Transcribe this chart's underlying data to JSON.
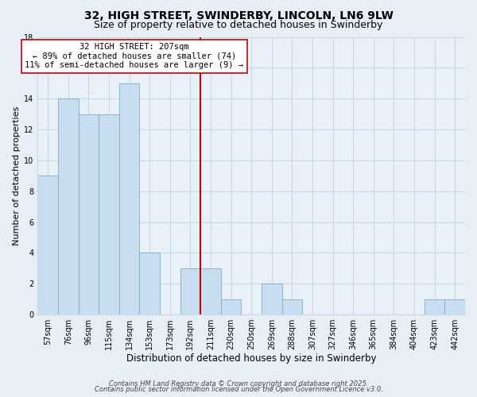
{
  "title": "32, HIGH STREET, SWINDERBY, LINCOLN, LN6 9LW",
  "subtitle": "Size of property relative to detached houses in Swinderby",
  "xlabel": "Distribution of detached houses by size in Swinderby",
  "ylabel": "Number of detached properties",
  "bar_labels": [
    "57sqm",
    "76sqm",
    "96sqm",
    "115sqm",
    "134sqm",
    "153sqm",
    "173sqm",
    "192sqm",
    "211sqm",
    "230sqm",
    "250sqm",
    "269sqm",
    "288sqm",
    "307sqm",
    "327sqm",
    "346sqm",
    "365sqm",
    "384sqm",
    "404sqm",
    "423sqm",
    "442sqm"
  ],
  "bar_values": [
    9,
    14,
    13,
    13,
    15,
    4,
    0,
    3,
    3,
    1,
    0,
    2,
    1,
    0,
    0,
    0,
    0,
    0,
    0,
    1,
    1
  ],
  "bar_color": "#c8ddf0",
  "bar_edge_color": "#7aafc8",
  "vline_color": "#cc0000",
  "annotation_title": "32 HIGH STREET: 207sqm",
  "annotation_line1": "← 89% of detached houses are smaller (74)",
  "annotation_line2": "11% of semi-detached houses are larger (9) →",
  "annotation_box_color": "#ffffff",
  "annotation_box_edge": "#cc0000",
  "ylim": [
    0,
    18
  ],
  "yticks": [
    0,
    2,
    4,
    6,
    8,
    10,
    12,
    14,
    16,
    18
  ],
  "background_color": "#e8eef5",
  "plot_bg_color": "#e8f0f8",
  "grid_color": "#c8d8e8",
  "footer1": "Contains HM Land Registry data © Crown copyright and database right 2025.",
  "footer2": "Contains public sector information licensed under the Open Government Licence v3.0.",
  "title_fontsize": 10,
  "subtitle_fontsize": 9,
  "xlabel_fontsize": 8.5,
  "ylabel_fontsize": 8,
  "tick_fontsize": 7,
  "footer_fontsize": 6,
  "ann_fontsize": 7.5
}
